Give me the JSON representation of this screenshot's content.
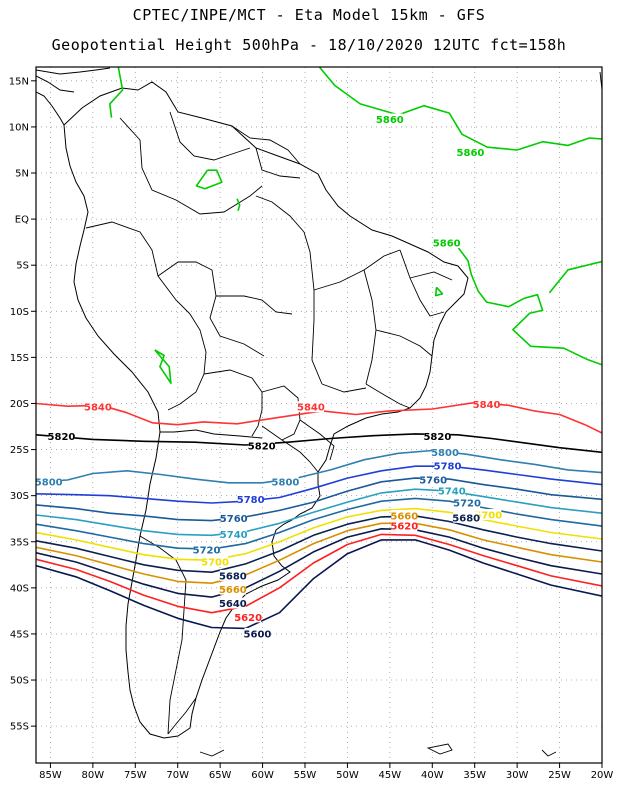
{
  "title_line1": "CPTEC/INPE/MCT -  Eta Model 15km - GFS",
  "title_line2": "Geopotential Height 500hPa - 18/10/2020 12UTC fct=158h",
  "chart_data": {
    "type": "map",
    "variable": "Geopotential Height 500hPa",
    "lat_ticks": [
      "15N",
      "10N",
      "5N",
      "EQ",
      "5S",
      "10S",
      "15S",
      "20S",
      "25S",
      "30S",
      "35S",
      "40S",
      "45S",
      "50S",
      "55S"
    ],
    "lon_ticks": [
      "85W",
      "80W",
      "75W",
      "70W",
      "65W",
      "60W",
      "55W",
      "50W",
      "45W",
      "40W",
      "35W",
      "30W",
      "25W",
      "20W"
    ],
    "contour_levels": [
      {
        "value": 5860,
        "label": "5860",
        "color": "#00cc00"
      },
      {
        "value": 5840,
        "label": "5840",
        "color": "#ff3333"
      },
      {
        "value": 5820,
        "label": "5820",
        "color": "#000000"
      },
      {
        "value": 5800,
        "label": "5800",
        "color": "#2f7fb0"
      },
      {
        "value": 5780,
        "label": "5780",
        "color": "#1f3fd8"
      },
      {
        "value": 5760,
        "label": "5760",
        "color": "#1a5a9a"
      },
      {
        "value": 5740,
        "label": "5740",
        "color": "#2aa0c0"
      },
      {
        "value": 5720,
        "label": "5720",
        "color": "#1f6aa0"
      },
      {
        "value": 5700,
        "label": "5700",
        "color": "#f0e000"
      },
      {
        "value": 5680,
        "label": "5680",
        "color": "#0b2050"
      },
      {
        "value": 5660,
        "label": "5660",
        "color": "#d89000"
      },
      {
        "value": 5640,
        "label": "5640",
        "color": "#0b1a4a"
      },
      {
        "value": 5620,
        "label": "5620",
        "color": "#ff2020"
      },
      {
        "value": 5600,
        "label": "5600",
        "color": "#0a1850"
      }
    ],
    "contour_labels": [
      {
        "level": 5860,
        "text": "5860",
        "lon": -45.0,
        "lat": 10.8
      },
      {
        "level": 5860,
        "text": "5860",
        "lon": -35.5,
        "lat": 7.2
      },
      {
        "level": 5860,
        "text": "5860",
        "lon": -38.3,
        "lat": -2.6
      },
      {
        "level": 5840,
        "text": "5840",
        "lon": -79.4,
        "lat": -20.4
      },
      {
        "level": 5840,
        "text": "5840",
        "lon": -54.3,
        "lat": -20.4
      },
      {
        "level": 5840,
        "text": "5840",
        "lon": -33.6,
        "lat": -20.1
      },
      {
        "level": 5820,
        "text": "5820",
        "lon": -83.7,
        "lat": -23.6
      },
      {
        "level": 5820,
        "text": "5820",
        "lon": -60.1,
        "lat": -24.6
      },
      {
        "level": 5820,
        "text": "5820",
        "lon": -39.4,
        "lat": -23.6
      },
      {
        "level": 5800,
        "text": "5800",
        "lon": -38.5,
        "lat": -25.3
      },
      {
        "level": 5800,
        "text": "5800",
        "lon": -57.3,
        "lat": -28.5
      },
      {
        "level": 5800,
        "text": "5800",
        "lon": -85.2,
        "lat": -28.5
      },
      {
        "level": 5780,
        "text": "5780",
        "lon": -38.2,
        "lat": -26.8
      },
      {
        "level": 5780,
        "text": "5780",
        "lon": -61.4,
        "lat": -30.4
      },
      {
        "level": 5760,
        "text": "5760",
        "lon": -39.9,
        "lat": -28.3
      },
      {
        "level": 5760,
        "text": "5760",
        "lon": -63.4,
        "lat": -32.5
      },
      {
        "level": 5740,
        "text": "5740",
        "lon": -37.7,
        "lat": -29.5
      },
      {
        "level": 5740,
        "text": "5740",
        "lon": -63.4,
        "lat": -34.2
      },
      {
        "level": 5720,
        "text": "5720",
        "lon": -35.9,
        "lat": -30.8
      },
      {
        "level": 5720,
        "text": "5720",
        "lon": -66.6,
        "lat": -35.9
      },
      {
        "level": 5700,
        "text": "5700",
        "lon": -33.4,
        "lat": -32.1
      },
      {
        "level": 5700,
        "text": "5700",
        "lon": -65.6,
        "lat": -37.2
      },
      {
        "level": 5680,
        "text": "5680",
        "lon": -36.0,
        "lat": -32.4
      },
      {
        "level": 5680,
        "text": "5680",
        "lon": -63.5,
        "lat": -38.7
      },
      {
        "level": 5660,
        "text": "5660",
        "lon": -43.3,
        "lat": -32.2
      },
      {
        "level": 5660,
        "text": "5660",
        "lon": -63.5,
        "lat": -40.2
      },
      {
        "level": 5640,
        "text": "5640",
        "lon": -63.5,
        "lat": -41.7
      },
      {
        "level": 5620,
        "text": "5620",
        "lon": -43.3,
        "lat": -33.3
      },
      {
        "level": 5620,
        "text": "5620",
        "lon": -61.7,
        "lat": -43.2
      },
      {
        "level": 5600,
        "text": "5600",
        "lon": -60.6,
        "lat": -45.0
      }
    ]
  }
}
